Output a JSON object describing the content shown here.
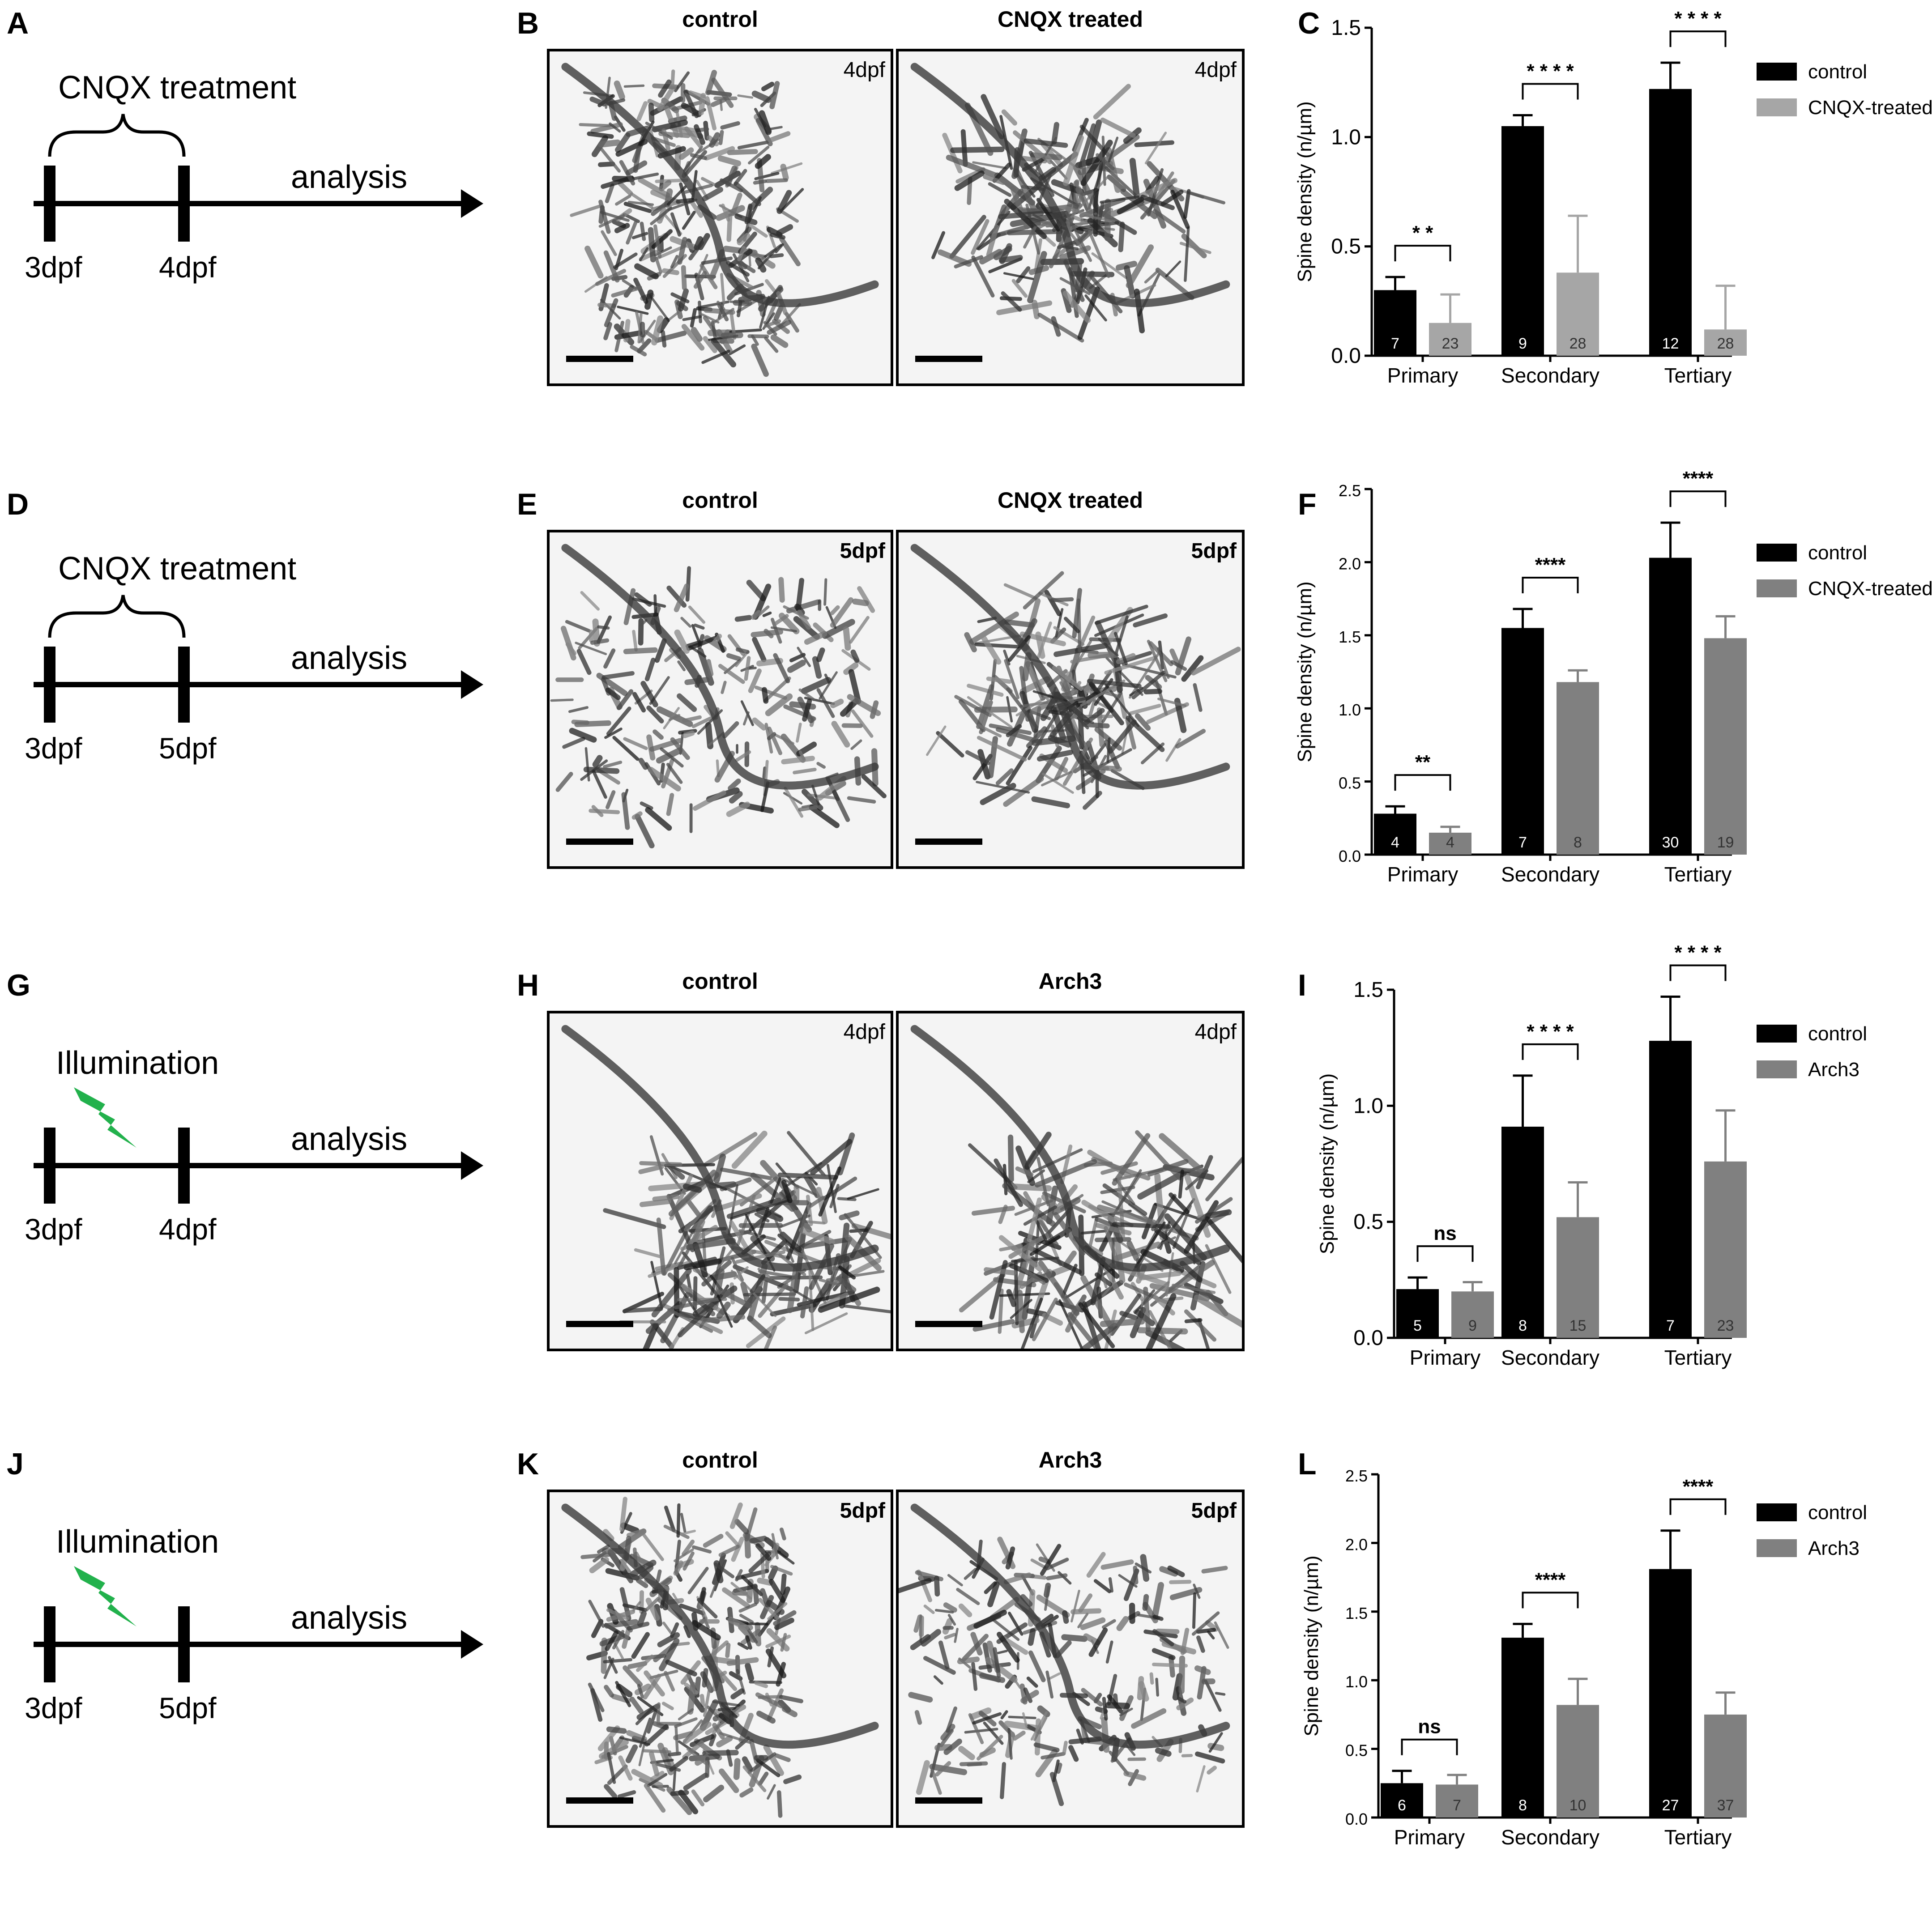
{
  "rows": [
    {
      "timeline": {
        "label": "A",
        "top_label": "CNQX treatment",
        "start": "3dpf",
        "end": "4dpf",
        "analysis": "analysis",
        "kind": "brace"
      },
      "images": {
        "label": "B",
        "panels": [
          {
            "title": "control",
            "stage": "4dpf",
            "morph": "dense"
          },
          {
            "title": "CNQX treated",
            "stage": "4dpf",
            "morph": "branchy"
          }
        ]
      },
      "chart": {
        "label": "C",
        "chart_data": {
          "type": "bar",
          "categories": [
            "Primary",
            "Secondary",
            "Tertiary"
          ],
          "ylabel": "Spine density (n/µm)",
          "ylim": [
            0,
            1.5
          ],
          "yticks": [
            "0.0",
            "0.5",
            "1.0",
            "1.5"
          ],
          "series": [
            {
              "name": "control",
              "color": "#000000",
              "values": [
                0.3,
                1.05,
                1.22
              ],
              "errors": [
                0.06,
                0.05,
                0.12
              ],
              "n": [
                "7",
                "9",
                "12"
              ]
            },
            {
              "name": "CNQX-treated",
              "color": "#a6a6a6",
              "values": [
                0.15,
                0.38,
                0.12
              ],
              "errors": [
                0.13,
                0.26,
                0.2
              ],
              "n": [
                "23",
                "28",
                "28"
              ]
            }
          ],
          "significance": [
            "* *",
            "* * * *",
            "* * * *"
          ],
          "legend": "top-right"
        }
      }
    },
    {
      "timeline": {
        "label": "D",
        "top_label": "CNQX treatment",
        "start": "3dpf",
        "end": "5dpf",
        "analysis": "analysis",
        "kind": "brace"
      },
      "images": {
        "label": "E",
        "panels": [
          {
            "title": "control",
            "stage": "5dpf",
            "morph": "spread"
          },
          {
            "title": "CNQX treated",
            "stage": "5dpf",
            "morph": "branchy"
          }
        ]
      },
      "chart": {
        "label": "F",
        "chart_data": {
          "type": "bar",
          "categories": [
            "Primary",
            "Secondary",
            "Tertiary"
          ],
          "ylabel": "Spine density (n/µm)",
          "ylim": [
            0,
            2.5
          ],
          "yticks": [
            "0.0",
            "0.5",
            "1.0",
            "1.5",
            "2.0",
            "2.5"
          ],
          "series": [
            {
              "name": "control",
              "color": "#000000",
              "values": [
                0.28,
                1.55,
                2.03
              ],
              "errors": [
                0.05,
                0.13,
                0.24
              ],
              "n": [
                "4",
                "7",
                "30"
              ]
            },
            {
              "name": "CNQX-treated",
              "color": "#808080",
              "values": [
                0.15,
                1.18,
                1.48
              ],
              "errors": [
                0.04,
                0.08,
                0.15
              ],
              "n": [
                "4",
                "8",
                "19"
              ]
            }
          ],
          "significance": [
            "**",
            "****",
            "****"
          ],
          "legend": "top-right"
        }
      }
    },
    {
      "timeline": {
        "label": "G",
        "top_label": "Illumination",
        "start": "3dpf",
        "end": "4dpf",
        "analysis": "analysis",
        "kind": "bolt"
      },
      "images": {
        "label": "H",
        "panels": [
          {
            "title": "control",
            "stage": "4dpf",
            "morph": "fan"
          },
          {
            "title": "Arch3",
            "stage": "4dpf",
            "morph": "fan2"
          }
        ]
      },
      "chart": {
        "label": "I",
        "chart_data": {
          "type": "bar",
          "categories": [
            "Primary",
            "Secondary",
            "Tertiary"
          ],
          "ylabel": "Spine density (n/µm)",
          "ylim": [
            0,
            1.5
          ],
          "yticks": [
            "0.0",
            "0.5",
            "1.0",
            "1.5"
          ],
          "series": [
            {
              "name": "control",
              "color": "#000000",
              "values": [
                0.21,
                0.91,
                1.28
              ],
              "errors": [
                0.05,
                0.22,
                0.19
              ],
              "n": [
                "5",
                "8",
                "7"
              ]
            },
            {
              "name": "Arch3",
              "color": "#808080",
              "values": [
                0.2,
                0.52,
                0.76
              ],
              "errors": [
                0.04,
                0.15,
                0.22
              ],
              "n": [
                "9",
                "15",
                "23"
              ]
            }
          ],
          "significance": [
            "ns",
            "* * * *",
            "* * * *"
          ],
          "legend": "top-right"
        }
      }
    },
    {
      "timeline": {
        "label": "J",
        "top_label": "Illumination",
        "start": "3dpf",
        "end": "5dpf",
        "analysis": "analysis",
        "kind": "bolt"
      },
      "images": {
        "label": "K",
        "panels": [
          {
            "title": "control",
            "stage": "5dpf",
            "morph": "dense"
          },
          {
            "title": "Arch3",
            "stage": "5dpf",
            "morph": "spread"
          }
        ]
      },
      "chart": {
        "label": "L",
        "chart_data": {
          "type": "bar",
          "categories": [
            "Primary",
            "Secondary",
            "Tertiary"
          ],
          "ylabel": "Spine density (n/µm)",
          "ylim": [
            0,
            2.5
          ],
          "yticks": [
            "0.0",
            "0.5",
            "1.0",
            "1.5",
            "2.0",
            "2.5"
          ],
          "series": [
            {
              "name": "control",
              "color": "#000000",
              "values": [
                0.25,
                1.31,
                1.81
              ],
              "errors": [
                0.09,
                0.1,
                0.28
              ],
              "n": [
                "6",
                "8",
                "27"
              ]
            },
            {
              "name": "Arch3",
              "color": "#808080",
              "values": [
                0.24,
                0.82,
                0.75
              ],
              "errors": [
                0.07,
                0.19,
                0.16
              ],
              "n": [
                "7",
                "10",
                "37"
              ]
            }
          ],
          "significance": [
            "ns",
            "****",
            "****"
          ],
          "legend": "top-right"
        }
      }
    }
  ]
}
